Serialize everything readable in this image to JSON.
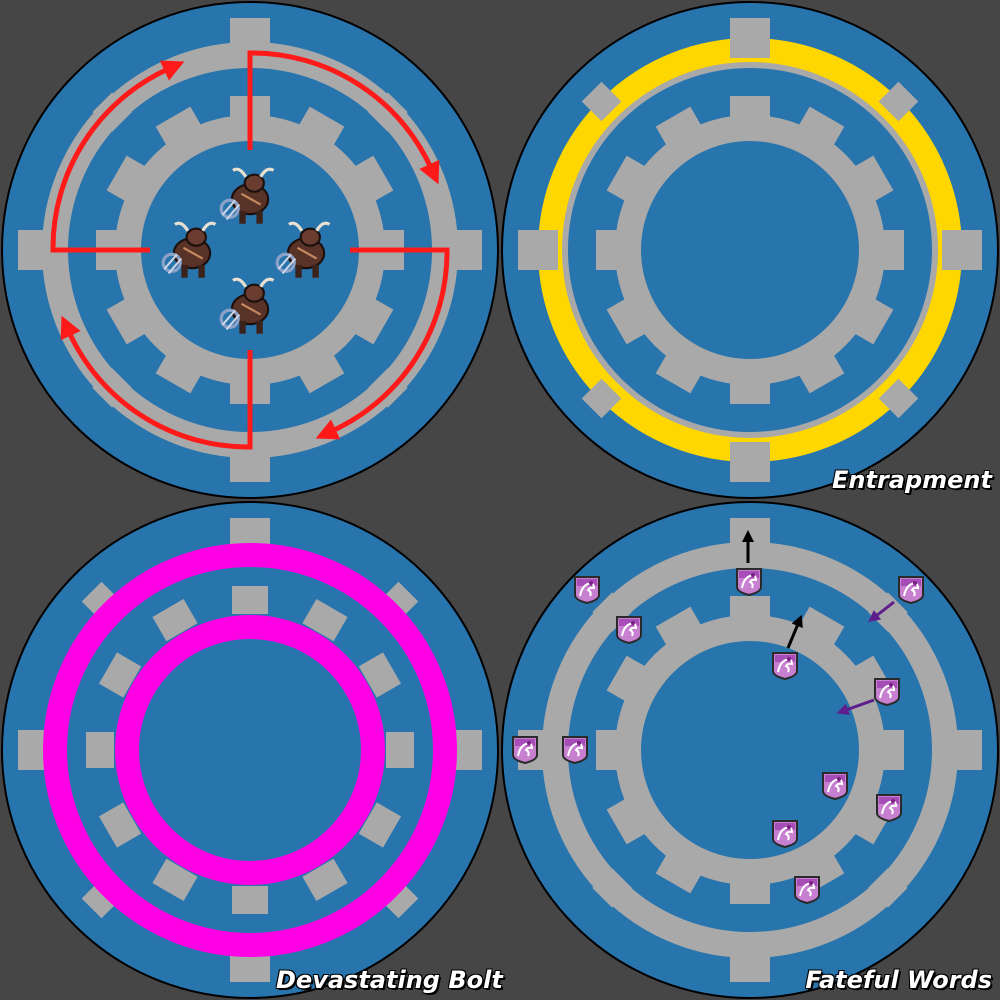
{
  "colors": {
    "background": "#464646",
    "arena_floor": "#2874AD",
    "walkway": "#A9A9A9",
    "arrow_rotation": "#FF1A1A",
    "entrapment_ring": "#FFD700",
    "devastating_bolt_ring": "#FF00E5",
    "push_arrow": "#000000",
    "pull_arrow": "#5E1E8E"
  },
  "panels": {
    "rotation": {
      "caption": "",
      "boss_icon": "taurus-boss-icon",
      "boss_count": 4,
      "arrow_direction": "clockwise"
    },
    "entrapment": {
      "caption": "Entrapment",
      "ring": "outer"
    },
    "devastating_bolt": {
      "caption": "Devastating Bolt",
      "rings": [
        "outer",
        "inner"
      ]
    },
    "fateful_words": {
      "caption": "Fateful Words",
      "debuff_icon": "fateful-words-debuff-icon",
      "marker_count": 11,
      "push_arrows": 2,
      "pull_arrows": 2
    }
  }
}
